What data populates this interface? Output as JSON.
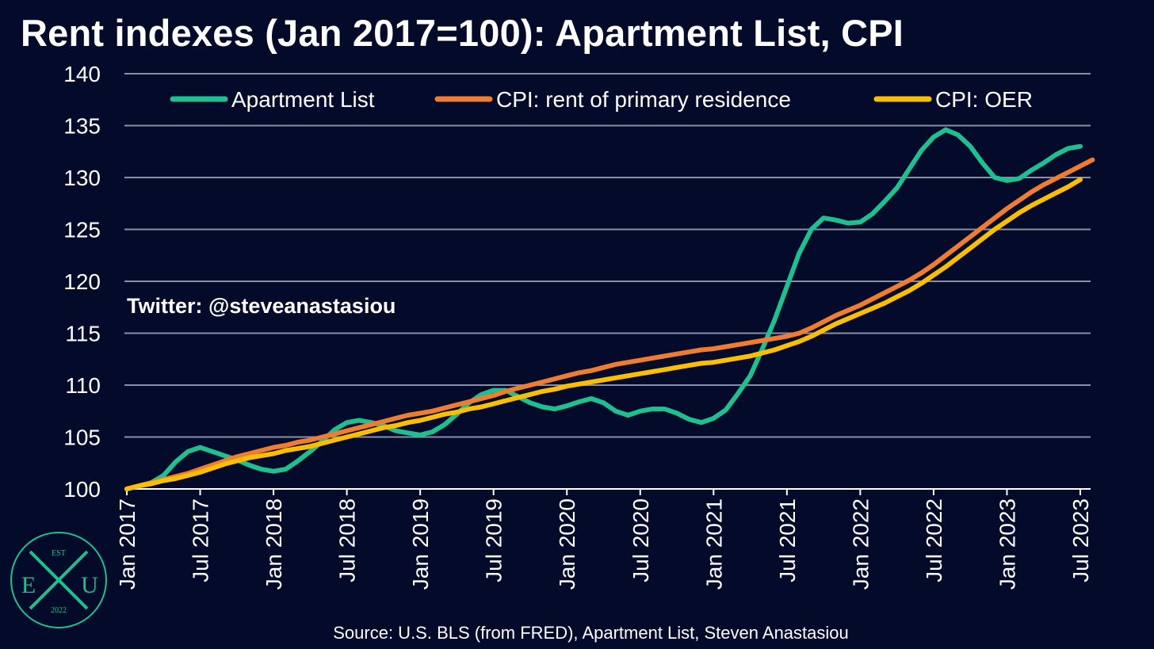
{
  "title": "Rent indexes (Jan 2017=100): Apartment List, CPI",
  "handle": "Twitter: @steveanastasiou",
  "source": "Source: U.S. BLS (from FRED), Apartment List, Steven Anastasiou",
  "logo": {
    "top": "EST",
    "left": "E",
    "right": "U",
    "bottom": "2022",
    "icon": "crossed-swords-logo"
  },
  "colors": {
    "background": "#040a2a",
    "grid": "#8a8ea6",
    "apartment_list": "#1fbf8f",
    "cpi_rent": "#ee7d31",
    "cpi_oer": "#fbbf00",
    "logo": "#1fbf8f"
  },
  "chart_data": {
    "type": "line",
    "title": "Rent indexes (Jan 2017=100): Apartment List, CPI",
    "xlabel": "",
    "ylabel": "",
    "ylim": [
      100,
      140
    ],
    "yticks": [
      100,
      105,
      110,
      115,
      120,
      125,
      130,
      135,
      140
    ],
    "xticks": [
      "Jan 2017",
      "Jul 2017",
      "Jan 2018",
      "Jul 2018",
      "Jan 2019",
      "Jul 2019",
      "Jan 2020",
      "Jul 2020",
      "Jan 2021",
      "Jul 2021",
      "Jan 2022",
      "Jul 2022",
      "Jan 2023",
      "Jul 2023"
    ],
    "x_start": "Jan 2017",
    "x_frequency": "monthly",
    "grid": true,
    "legend_position": "top",
    "series": [
      {
        "name": "Apartment List",
        "values": [
          100.0,
          100.3,
          100.6,
          101.3,
          102.6,
          103.6,
          104.0,
          103.6,
          103.2,
          102.8,
          102.3,
          101.9,
          101.7,
          101.9,
          102.7,
          103.6,
          104.6,
          105.7,
          106.4,
          106.6,
          106.4,
          106.1,
          105.6,
          105.4,
          105.2,
          105.5,
          106.2,
          107.2,
          108.3,
          109.1,
          109.5,
          109.5,
          108.9,
          108.3,
          107.9,
          107.7,
          108.0,
          108.4,
          108.7,
          108.3,
          107.5,
          107.1,
          107.5,
          107.7,
          107.7,
          107.3,
          106.7,
          106.4,
          106.8,
          107.6,
          109.2,
          110.9,
          113.5,
          116.3,
          119.5,
          122.7,
          125.0,
          126.1,
          125.9,
          125.6,
          125.7,
          126.5,
          127.7,
          129.0,
          130.8,
          132.6,
          133.9,
          134.6,
          134.1,
          133.0,
          131.4,
          130.0,
          129.7,
          129.9,
          130.7,
          131.4,
          132.2,
          132.8,
          133.0
        ]
      },
      {
        "name": "CPI: rent of primary residence",
        "values": [
          100.0,
          100.3,
          100.6,
          100.9,
          101.2,
          101.5,
          101.9,
          102.3,
          102.7,
          103.1,
          103.4,
          103.7,
          104.0,
          104.2,
          104.5,
          104.7,
          105.0,
          105.3,
          105.6,
          105.9,
          106.2,
          106.5,
          106.8,
          107.1,
          107.3,
          107.5,
          107.8,
          108.1,
          108.4,
          108.7,
          109.0,
          109.4,
          109.7,
          110.0,
          110.3,
          110.6,
          110.9,
          111.2,
          111.4,
          111.7,
          112.0,
          112.2,
          112.4,
          112.6,
          112.8,
          113.0,
          113.2,
          113.4,
          113.5,
          113.7,
          113.9,
          114.1,
          114.3,
          114.5,
          114.7,
          115.0,
          115.5,
          116.1,
          116.7,
          117.2,
          117.7,
          118.3,
          118.9,
          119.5,
          120.1,
          120.8,
          121.6,
          122.5,
          123.4,
          124.3,
          125.2,
          126.1,
          127.0,
          127.8,
          128.6,
          129.3,
          129.9,
          130.5,
          131.1,
          131.7
        ]
      },
      {
        "name": "CPI: OER",
        "values": [
          100.0,
          100.3,
          100.5,
          100.8,
          101.0,
          101.3,
          101.6,
          102.0,
          102.4,
          102.7,
          103.0,
          103.2,
          103.4,
          103.7,
          103.9,
          104.1,
          104.4,
          104.7,
          105.0,
          105.3,
          105.6,
          105.9,
          106.1,
          106.4,
          106.6,
          106.9,
          107.2,
          107.4,
          107.7,
          107.9,
          108.2,
          108.5,
          108.8,
          109.1,
          109.4,
          109.6,
          109.9,
          110.1,
          110.3,
          110.5,
          110.7,
          110.9,
          111.1,
          111.3,
          111.5,
          111.7,
          111.9,
          112.1,
          112.2,
          112.4,
          112.6,
          112.8,
          113.1,
          113.4,
          113.8,
          114.2,
          114.7,
          115.3,
          115.9,
          116.4,
          116.9,
          117.4,
          117.9,
          118.5,
          119.1,
          119.8,
          120.6,
          121.4,
          122.3,
          123.2,
          124.1,
          125.0,
          125.8,
          126.6,
          127.3,
          127.9,
          128.5,
          129.1,
          129.8
        ]
      }
    ]
  }
}
